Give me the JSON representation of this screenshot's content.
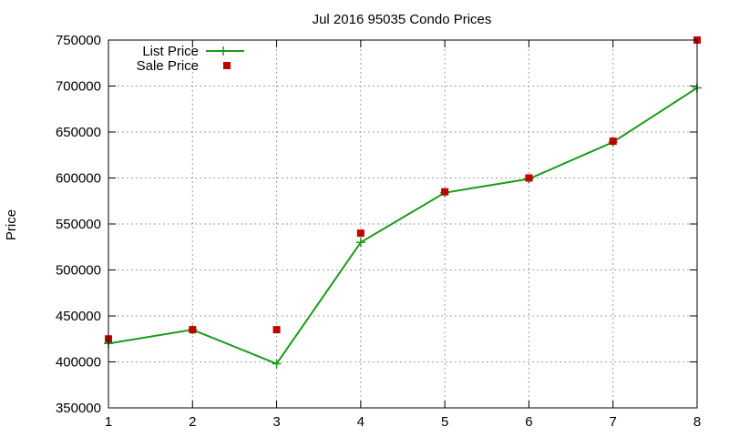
{
  "chart_data": {
    "type": "line",
    "title": "Jul 2016 95035 Condo Prices",
    "xlabel": "",
    "ylabel": "Price",
    "x": [
      1,
      2,
      3,
      4,
      5,
      6,
      7,
      8
    ],
    "xlim": [
      1,
      8
    ],
    "ylim": [
      350000,
      750000
    ],
    "xticks": [
      "1",
      "2",
      "3",
      "4",
      "5",
      "6",
      "7",
      "8"
    ],
    "yticks": [
      "350000",
      "400000",
      "450000",
      "500000",
      "550000",
      "600000",
      "650000",
      "700000",
      "750000"
    ],
    "grid": true,
    "legend_position": "top-left",
    "series": [
      {
        "name": "List Price",
        "style": "line-with-plus-markers",
        "color": "#1a9a1a",
        "values": [
          420000,
          435000,
          398000,
          530000,
          584000,
          599000,
          639000,
          698000
        ]
      },
      {
        "name": "Sale Price",
        "style": "square-markers",
        "color": "#c00000",
        "values": [
          425000,
          435000,
          435000,
          540000,
          585000,
          600000,
          640000,
          750000
        ]
      }
    ]
  }
}
